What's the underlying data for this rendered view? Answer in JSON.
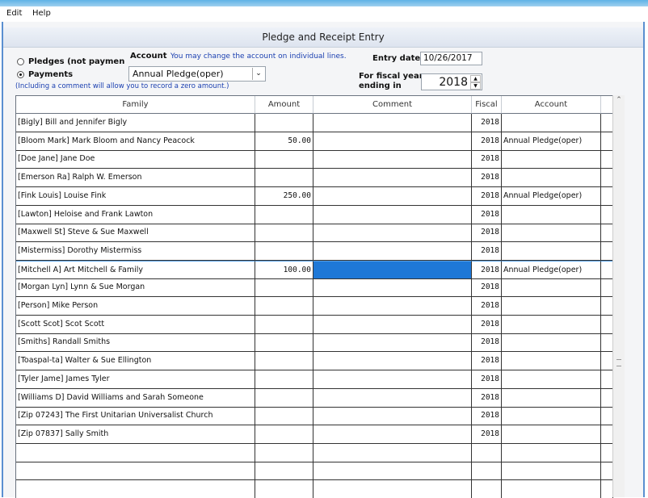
{
  "menu": [
    "Edit",
    "Help"
  ],
  "title": "Pledge and Receipt Entry",
  "mode_options": [
    {
      "label": "Pledges (not paymen",
      "checked": false
    },
    {
      "label": "Payments",
      "checked": true
    }
  ],
  "account_label": "Account",
  "account_hint": "You may change the account on individual lines.",
  "account_value": "Annual Pledge(oper)",
  "note": "(Including a comment will allow you to record a zero amount.)",
  "entry_date_label": "Entry date",
  "entry_date": "10/26/2017",
  "fiscal_label_lines": [
    "For fiscal year",
    "ending in"
  ],
  "fiscal_year": "2018",
  "table": {
    "columns": [
      "Family",
      "Amount",
      "Comment",
      "Fiscal",
      "Account"
    ],
    "rows": [
      {
        "family": "[Bigly] Bill and Jennifer Bigly",
        "amount": null,
        "comment": null,
        "fiscal": "2018",
        "account": null
      },
      {
        "family": "[Bloom Mark] Mark Bloom and Nancy Peacock",
        "amount": "50.00",
        "comment": null,
        "fiscal": "2018",
        "account": "Annual Pledge(oper)"
      },
      {
        "family": "[Doe Jane] Jane Doe",
        "amount": null,
        "comment": null,
        "fiscal": "2018",
        "account": null
      },
      {
        "family": "[Emerson Ra] Ralph W. Emerson",
        "amount": null,
        "comment": null,
        "fiscal": "2018",
        "account": null
      },
      {
        "family": "[Fink Louis] Louise Fink",
        "amount": "250.00",
        "comment": null,
        "fiscal": "2018",
        "account": "Annual Pledge(oper)"
      },
      {
        "family": "[Lawton] Heloise and Frank Lawton",
        "amount": null,
        "comment": null,
        "fiscal": "2018",
        "account": null
      },
      {
        "family": "[Maxwell St] Steve & Sue Maxwell",
        "amount": null,
        "comment": null,
        "fiscal": "2018",
        "account": null
      },
      {
        "family": "[Mistermiss] Dorothy Mistermiss",
        "amount": null,
        "comment": null,
        "fiscal": "2018",
        "account": null
      },
      {
        "family": "[Mitchell A] Art Mitchell & Family",
        "amount": "100.00",
        "comment": null,
        "fiscal": "2018",
        "account": "Annual Pledge(oper)",
        "selected": true
      },
      {
        "family": "[Morgan Lyn] Lynn & Sue Morgan",
        "amount": null,
        "comment": null,
        "fiscal": "2018",
        "account": null
      },
      {
        "family": "[Person] Mike Person",
        "amount": null,
        "comment": null,
        "fiscal": "2018",
        "account": null
      },
      {
        "family": "[Scott Scot] Scot Scott",
        "amount": null,
        "comment": null,
        "fiscal": "2018",
        "account": null
      },
      {
        "family": "[Smiths] Randall Smiths",
        "amount": null,
        "comment": null,
        "fiscal": "2018",
        "account": null
      },
      {
        "family": "[Toaspal-ta] Walter & Sue Ellington",
        "amount": null,
        "comment": null,
        "fiscal": "2018",
        "account": null
      },
      {
        "family": "[Tyler Jame] James Tyler",
        "amount": null,
        "comment": null,
        "fiscal": "2018",
        "account": null
      },
      {
        "family": "[Williams D] David Williams and Sarah Someone",
        "amount": null,
        "comment": null,
        "fiscal": "2018",
        "account": null
      },
      {
        "family": "[Zip 07243] The First Unitarian Universalist Church",
        "amount": null,
        "comment": null,
        "fiscal": "2018",
        "account": null
      },
      {
        "family": "[Zip 07837] Sally Smith",
        "amount": null,
        "comment": null,
        "fiscal": "2018",
        "account": null
      }
    ]
  }
}
